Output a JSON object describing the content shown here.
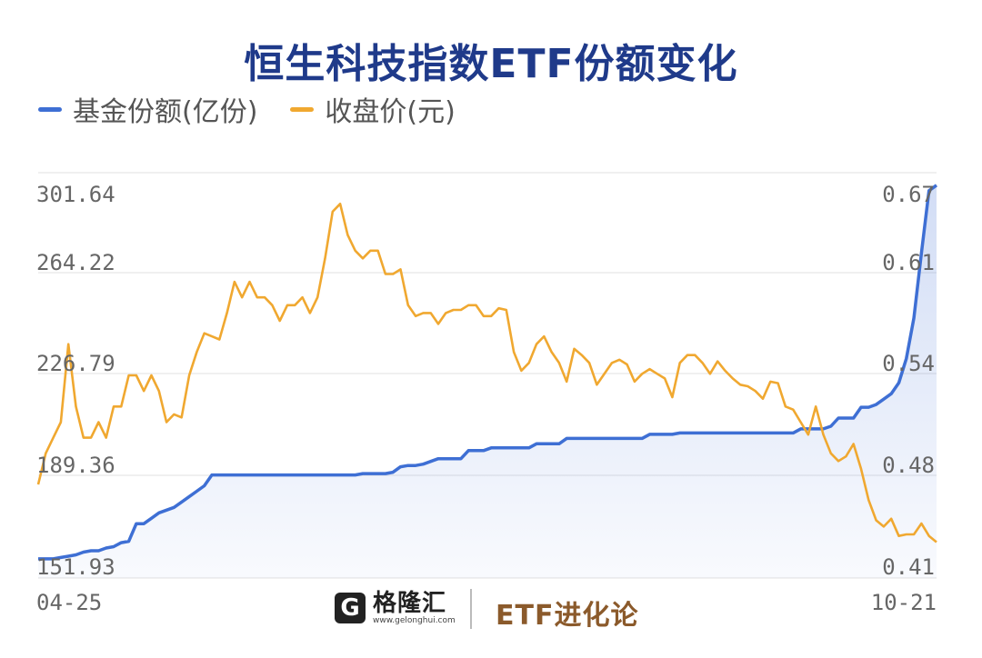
{
  "title": "恒生科技指数ETF份额变化",
  "legend": [
    {
      "label": "基金份额(亿份)",
      "color": "#3e6fd4"
    },
    {
      "label": "收盘价(元)",
      "color": "#f0a830"
    }
  ],
  "footer": {
    "logo_mark": "G",
    "logo_name": "格隆汇",
    "logo_url": "www.gelonghui.com",
    "brand": "ETF进化论"
  },
  "chart_data": {
    "type": "line",
    "x_start_label": "04-25",
    "x_end_label": "10-21",
    "left_axis": {
      "ticks": [
        "301.64",
        "264.22",
        "226.79",
        "189.36",
        "151.93"
      ],
      "ylim": [
        151.93,
        301.64
      ]
    },
    "right_axis": {
      "ticks": [
        "0.67",
        "0.61",
        "0.54",
        "0.48",
        "0.41"
      ],
      "ylim": [
        0.41,
        0.67
      ]
    },
    "grid": true,
    "series": [
      {
        "name": "基金份额(亿份)",
        "axis": "left",
        "color": "#3e6fd4",
        "area": true,
        "values": [
          159,
          159,
          159,
          159.5,
          160,
          160.5,
          161.5,
          162,
          162,
          163,
          163.5,
          165,
          165.5,
          172,
          172,
          174,
          176,
          177,
          178,
          180,
          182,
          184,
          186,
          190,
          190,
          190,
          190,
          190,
          190,
          190,
          190,
          190,
          190,
          190,
          190,
          190,
          190,
          190,
          190,
          190,
          190,
          190,
          190,
          190.5,
          190.5,
          190.5,
          190.5,
          191,
          193,
          193.5,
          193.5,
          194,
          195,
          196,
          196,
          196,
          196,
          199,
          199,
          199,
          200,
          200,
          200,
          200,
          200,
          200,
          201.5,
          201.5,
          201.5,
          201.5,
          203.5,
          203.5,
          203.5,
          203.5,
          203.5,
          203.5,
          203.5,
          203.5,
          203.5,
          203.5,
          203.5,
          205,
          205,
          205,
          205,
          205.5,
          205.5,
          205.5,
          205.5,
          205.5,
          205.5,
          205.5,
          205.5,
          205.5,
          205.5,
          205.5,
          205.5,
          205.5,
          205.5,
          205.5,
          205.5,
          207,
          207,
          207,
          207,
          208,
          211,
          211,
          211,
          215,
          215,
          216,
          218,
          220,
          224,
          233,
          248,
          272,
          295,
          297
        ]
      },
      {
        "name": "收盘价(元)",
        "axis": "right",
        "color": "#f0a830",
        "area": false,
        "values": [
          0.47,
          0.49,
          0.5,
          0.51,
          0.56,
          0.52,
          0.5,
          0.5,
          0.51,
          0.5,
          0.52,
          0.52,
          0.54,
          0.54,
          0.53,
          0.54,
          0.53,
          0.51,
          0.515,
          0.513,
          0.54,
          0.555,
          0.567,
          0.565,
          0.563,
          0.58,
          0.6,
          0.59,
          0.6,
          0.59,
          0.59,
          0.585,
          0.575,
          0.585,
          0.585,
          0.59,
          0.58,
          0.59,
          0.615,
          0.645,
          0.65,
          0.63,
          0.62,
          0.615,
          0.62,
          0.62,
          0.605,
          0.605,
          0.608,
          0.585,
          0.578,
          0.58,
          0.58,
          0.573,
          0.58,
          0.582,
          0.582,
          0.585,
          0.585,
          0.578,
          0.578,
          0.583,
          0.582,
          0.555,
          0.543,
          0.548,
          0.56,
          0.565,
          0.555,
          0.548,
          0.536,
          0.557,
          0.553,
          0.548,
          0.534,
          0.541,
          0.548,
          0.55,
          0.547,
          0.536,
          0.541,
          0.544,
          0.541,
          0.538,
          0.526,
          0.548,
          0.553,
          0.553,
          0.548,
          0.541,
          0.549,
          0.543,
          0.538,
          0.534,
          0.533,
          0.53,
          0.525,
          0.536,
          0.535,
          0.52,
          0.518,
          0.51,
          0.502,
          0.52,
          0.502,
          0.49,
          0.485,
          0.488,
          0.496,
          0.48,
          0.46,
          0.447,
          0.443,
          0.448,
          0.437,
          0.438,
          0.438,
          0.445,
          0.437,
          0.433
        ]
      }
    ]
  }
}
